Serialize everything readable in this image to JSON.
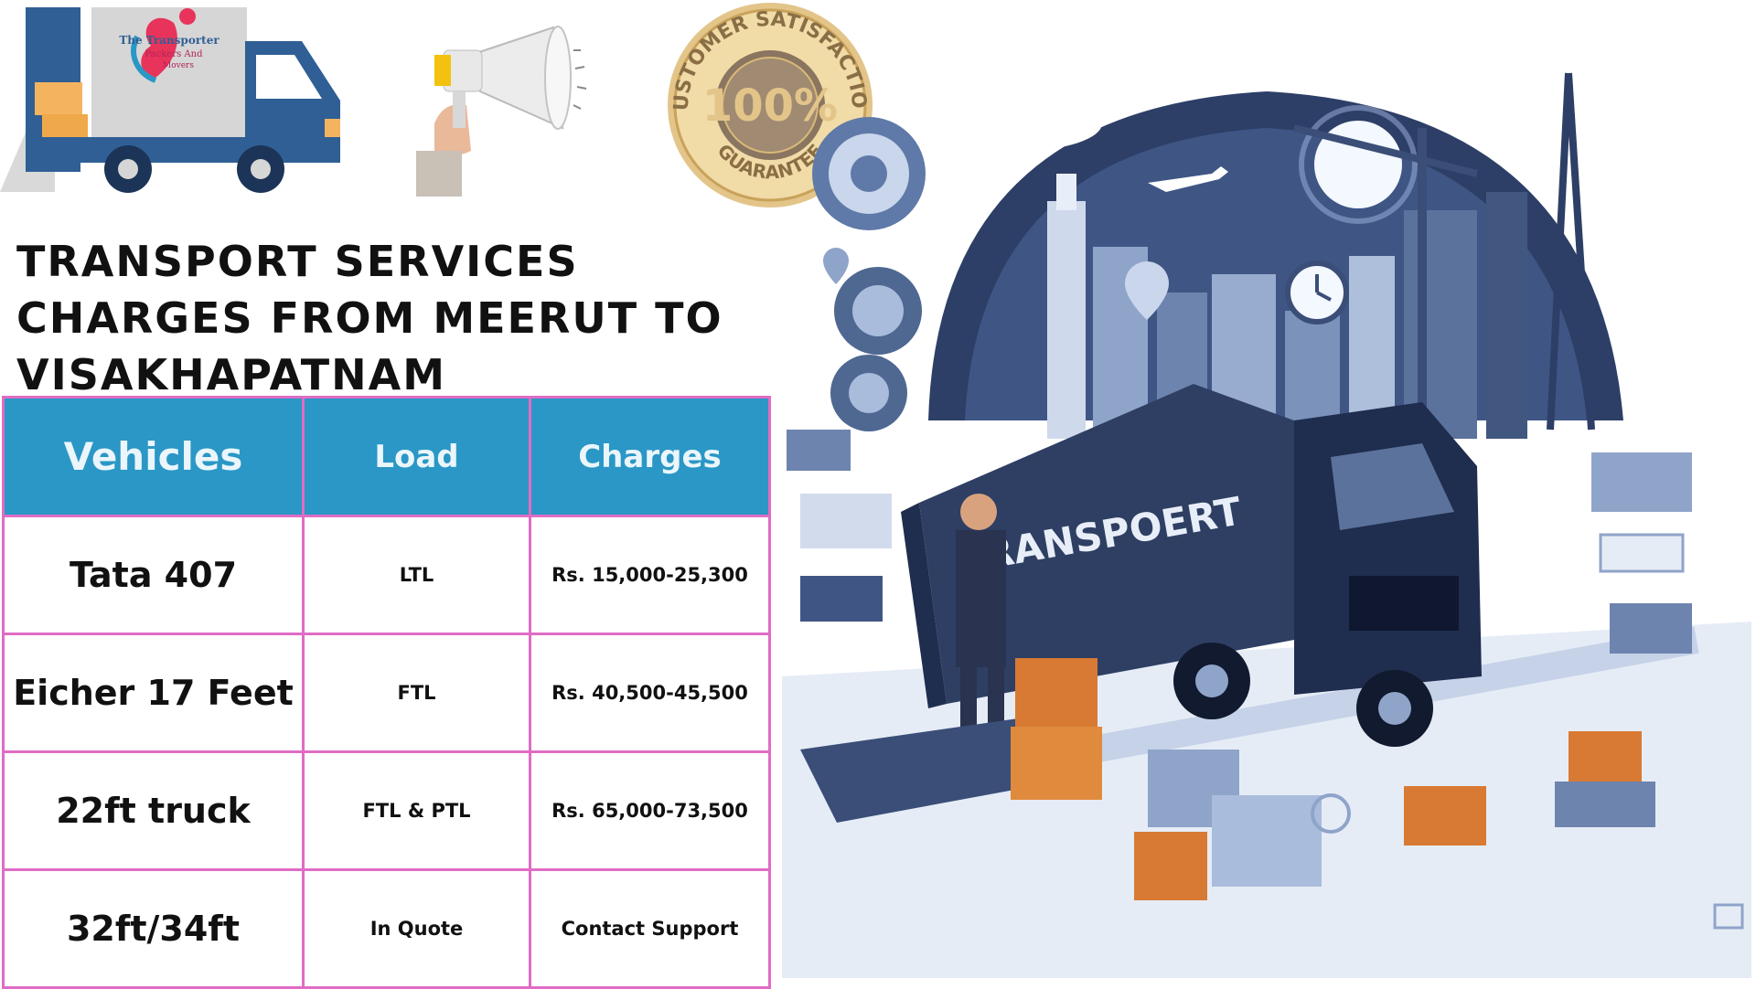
{
  "logo": {
    "brand_line1": "The Transporter",
    "brand_line2": "Packers And",
    "brand_line3": "Movers"
  },
  "badge": {
    "top_text": "CUSTOMER SATISFACTION",
    "center_text": "100%",
    "bottom_text": "GUARANTEE"
  },
  "heading": "TRANSPORT SERVICES CHARGES FROM MEERUT TO VISAKHAPATNAM",
  "table": {
    "headers": [
      "Vehicles",
      "Load",
      "Charges"
    ],
    "rows": [
      {
        "vehicle": "Tata 407",
        "load": "LTL",
        "charges": "Rs. 15,000-25,300"
      },
      {
        "vehicle": "Eicher 17 Feet",
        "load": "FTL",
        "charges": "Rs. 40,500-45,500"
      },
      {
        "vehicle": "22ft truck",
        "load": "FTL & PTL",
        "charges": "Rs. 65,000-73,500"
      },
      {
        "vehicle": "32ft/34ft",
        "load": "In Quote",
        "charges": "Contact Support"
      }
    ]
  },
  "illustration": {
    "truck_text": "TRANSPOERT"
  },
  "colors": {
    "table_header_bg": "#2a97c6",
    "table_border": "#e06cc4",
    "badge_gold": "#c9a25a",
    "truck_blue": "#2f5f95",
    "illustration_navy": "#1f2d4e"
  }
}
